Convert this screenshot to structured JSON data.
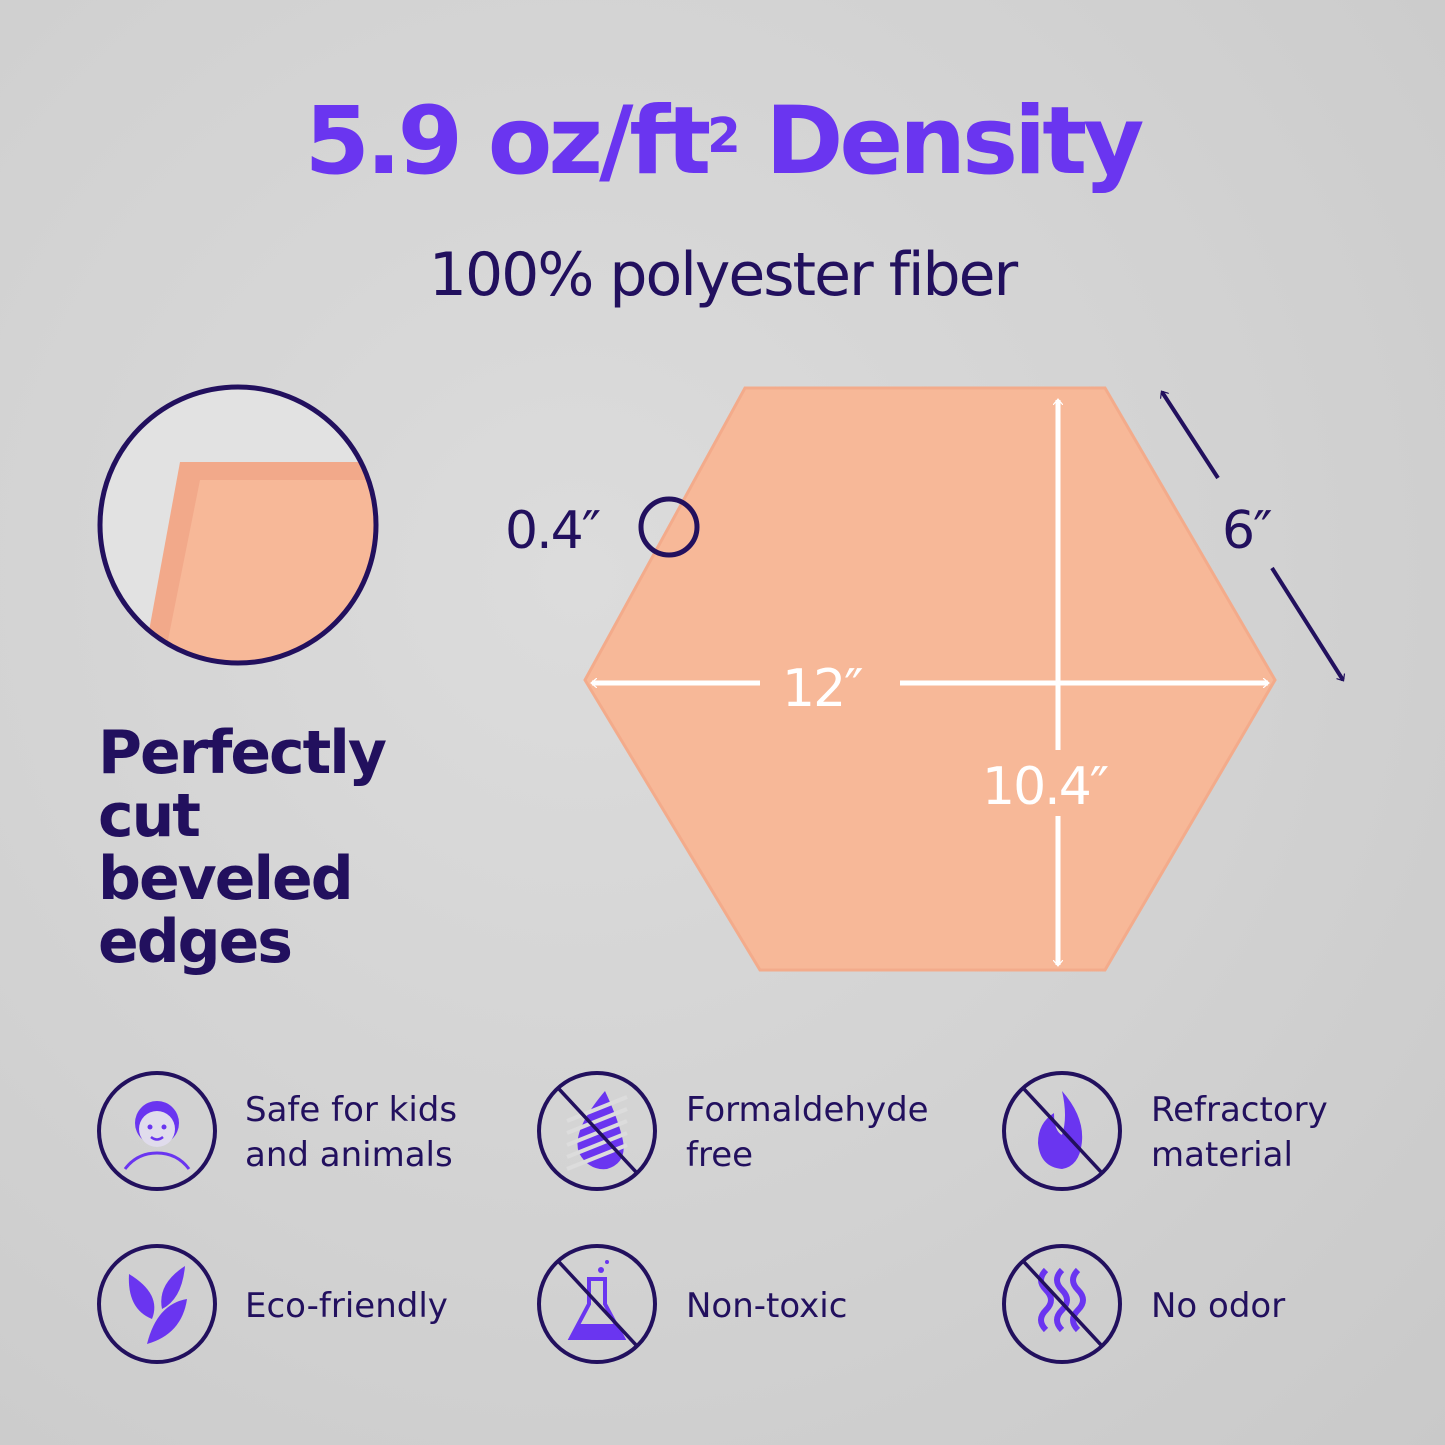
{
  "header": {
    "title_main": "5.9 oz/ft",
    "title_sup": "2",
    "title_end": " Density",
    "subtitle": "100% polyester fiber"
  },
  "dimensions": {
    "thickness": "0.4″",
    "side": "6″",
    "width": "12″",
    "height": "10.4″"
  },
  "bevel": {
    "lines": [
      "Perfectly",
      "cut",
      "beveled",
      "edges"
    ]
  },
  "features": [
    {
      "icon": "child-face-icon",
      "label_lines": [
        "Safe for kids",
        "and animals"
      ]
    },
    {
      "icon": "no-formaldehyde-drop-icon",
      "label_lines": [
        "Formaldehyde",
        "free"
      ]
    },
    {
      "icon": "no-fire-icon",
      "label_lines": [
        "Refractory",
        "material"
      ]
    },
    {
      "icon": "leaves-icon",
      "label_lines": [
        "Eco-friendly"
      ]
    },
    {
      "icon": "no-toxic-flask-icon",
      "label_lines": [
        "Non-toxic"
      ]
    },
    {
      "icon": "no-odor-icon",
      "label_lines": [
        "No odor"
      ]
    }
  ],
  "colors": {
    "accent": "#6a35f0",
    "navy": "#22105e",
    "panel": "#f7b898",
    "background": "#d4d4d4"
  }
}
